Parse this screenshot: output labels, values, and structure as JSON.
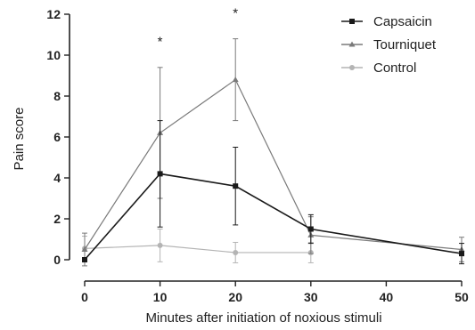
{
  "chart_data": {
    "type": "line",
    "xlabel": "Minutes after initiation of noxious stimuli",
    "ylabel": "Pain score",
    "xlim": [
      0,
      50
    ],
    "ylim": [
      0,
      12
    ],
    "xticks": [
      0,
      10,
      20,
      30,
      40,
      50
    ],
    "yticks": [
      0,
      2,
      4,
      6,
      8,
      10,
      12
    ],
    "grid": false,
    "legend_position": "top-right",
    "series": [
      {
        "name": "Capsaicin",
        "color": "#1a1a1a",
        "marker": "square",
        "x": [
          0,
          10,
          20,
          30,
          50
        ],
        "y": [
          0.0,
          4.2,
          3.6,
          1.5,
          0.3
        ],
        "err": [
          0.0,
          2.6,
          1.9,
          0.7,
          0.5
        ]
      },
      {
        "name": "Tourniquet",
        "color": "#7a7a7a",
        "marker": "triangle",
        "x": [
          0,
          10,
          20,
          30,
          50
        ],
        "y": [
          0.5,
          6.2,
          8.8,
          1.2,
          0.5
        ],
        "err": [
          0.8,
          3.2,
          2.0,
          0.9,
          0.6
        ]
      },
      {
        "name": "Control",
        "color": "#b4b4b4",
        "marker": "circle",
        "x": [
          0,
          10,
          20,
          30
        ],
        "y": [
          0.55,
          0.7,
          0.35,
          0.35
        ],
        "err": [
          0.6,
          0.8,
          0.5,
          0.5
        ]
      }
    ],
    "annotations": [
      {
        "text": "*",
        "x": 10,
        "y": 10.8
      },
      {
        "text": "*",
        "x": 20,
        "y": 12.2
      }
    ]
  }
}
